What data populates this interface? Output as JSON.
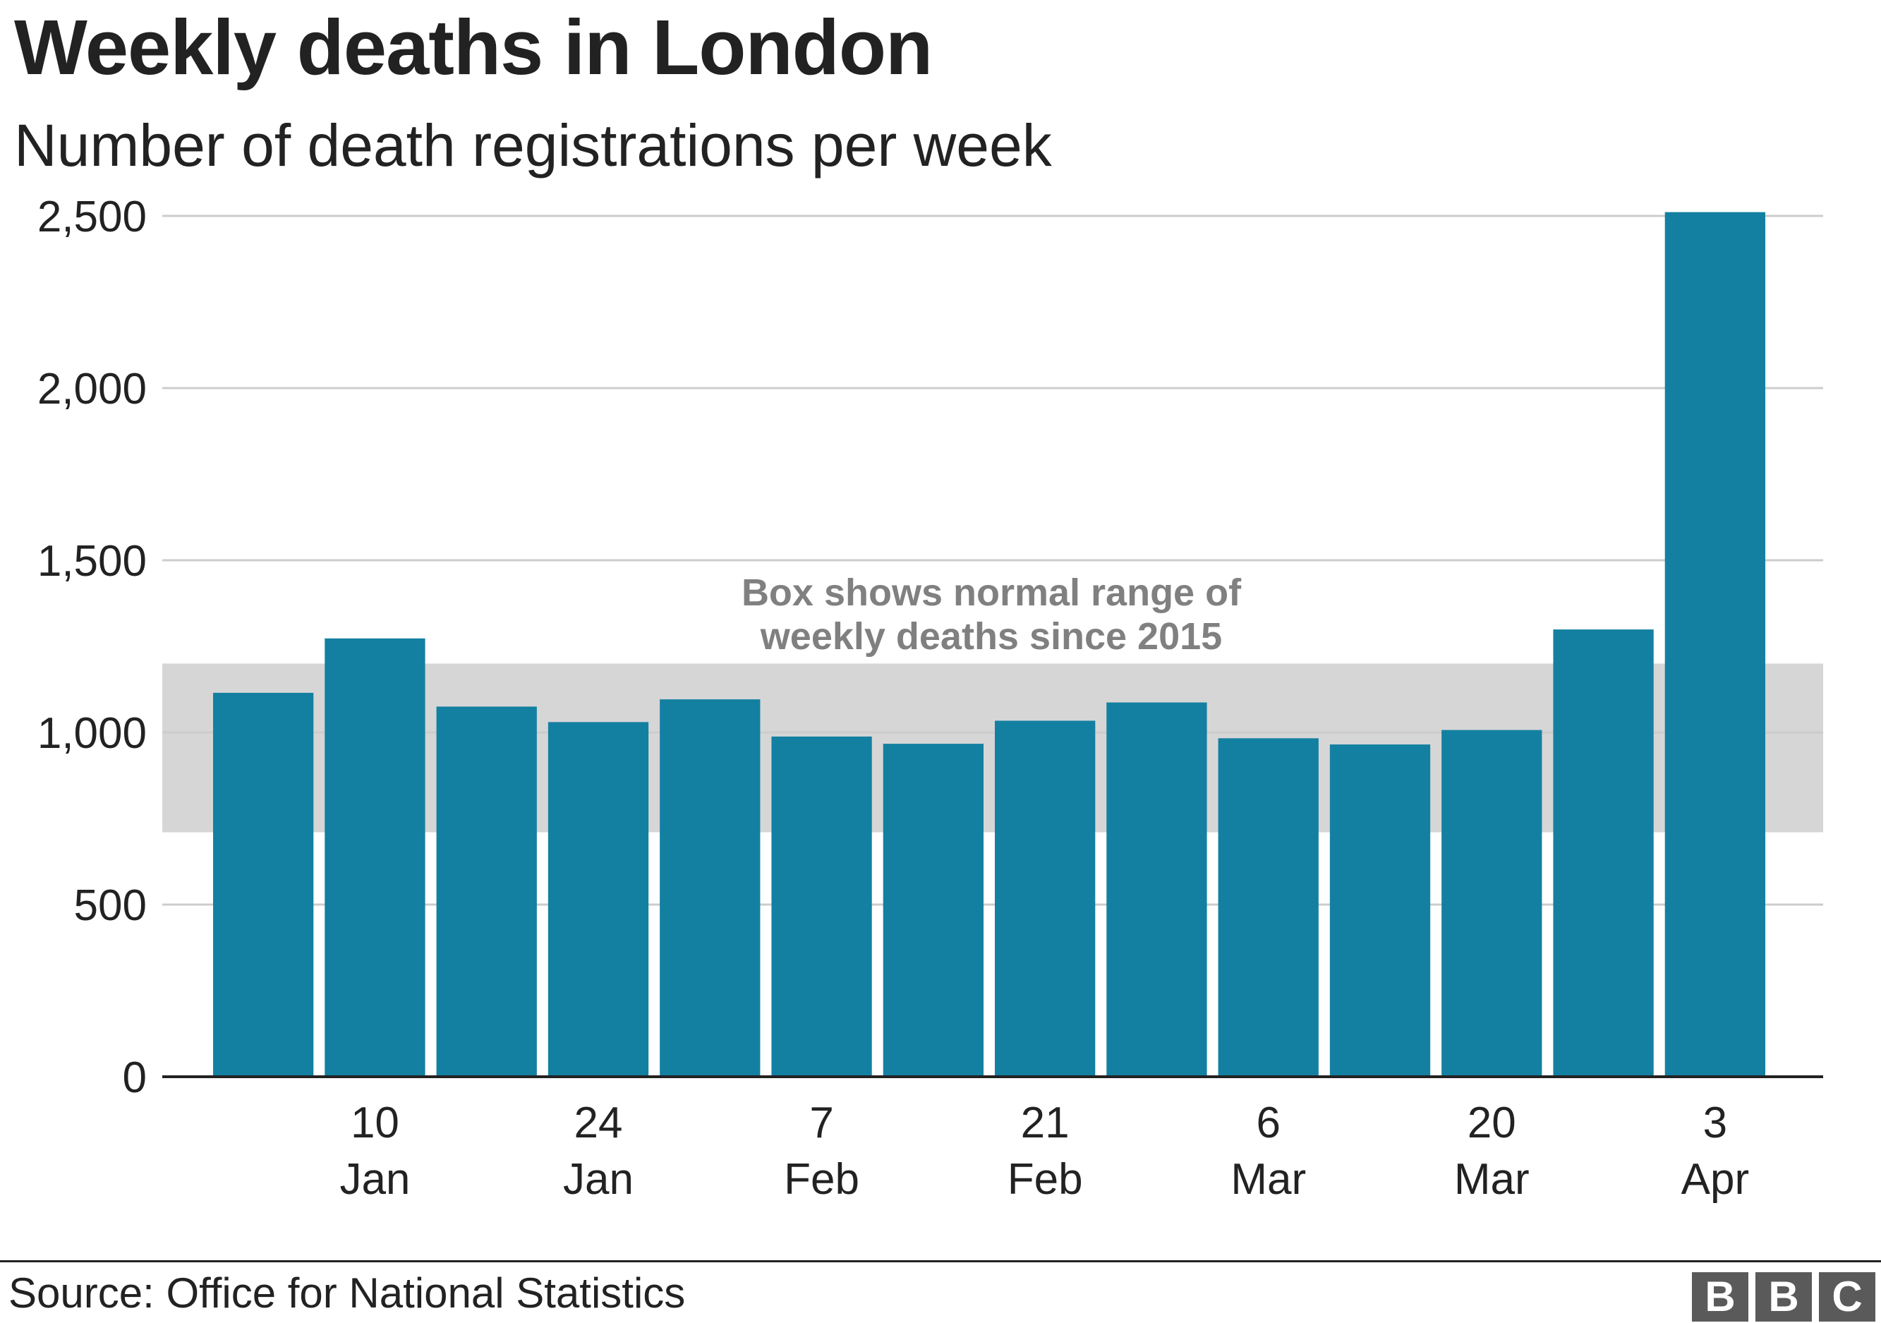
{
  "title": "Weekly deaths in London",
  "subtitle": "Number of death registrations per week",
  "source": "Source: Office for National Statistics",
  "logo": [
    "B",
    "B",
    "C"
  ],
  "colors": {
    "bar": "#1380A1",
    "band": "#D6D6D6",
    "grid": "#CCCCCC",
    "axis": "#222222"
  },
  "chart_data": {
    "type": "bar",
    "title": "Weekly deaths in London",
    "subtitle": "Number of death registrations per week",
    "xlabel": "",
    "ylabel": "",
    "ylim": [
      0,
      2500
    ],
    "yticks": [
      {
        "value": 0,
        "label": "0"
      },
      {
        "value": 500,
        "label": "500"
      },
      {
        "value": 1000,
        "label": "1,000"
      },
      {
        "value": 1500,
        "label": "1,500"
      },
      {
        "value": 2000,
        "label": "2,000"
      },
      {
        "value": 2500,
        "label": "2,500"
      }
    ],
    "values": [
      1115,
      1273,
      1075,
      1030,
      1096,
      988,
      967,
      1034,
      1087,
      983,
      965,
      1007,
      1299,
      2511
    ],
    "xticks": [
      {
        "index": 1,
        "day": "10",
        "month": "Jan"
      },
      {
        "index": 3,
        "day": "24",
        "month": "Jan"
      },
      {
        "index": 5,
        "day": "7",
        "month": "Feb"
      },
      {
        "index": 7,
        "day": "21",
        "month": "Feb"
      },
      {
        "index": 9,
        "day": "6",
        "month": "Mar"
      },
      {
        "index": 11,
        "day": "20",
        "month": "Mar"
      },
      {
        "index": 13,
        "day": "3",
        "month": "Apr"
      }
    ],
    "normal_range": {
      "low": 710,
      "high": 1200
    },
    "annotation": [
      "Box shows normal range of",
      "weekly deaths since 2015"
    ],
    "grid": true,
    "legend": "none"
  }
}
